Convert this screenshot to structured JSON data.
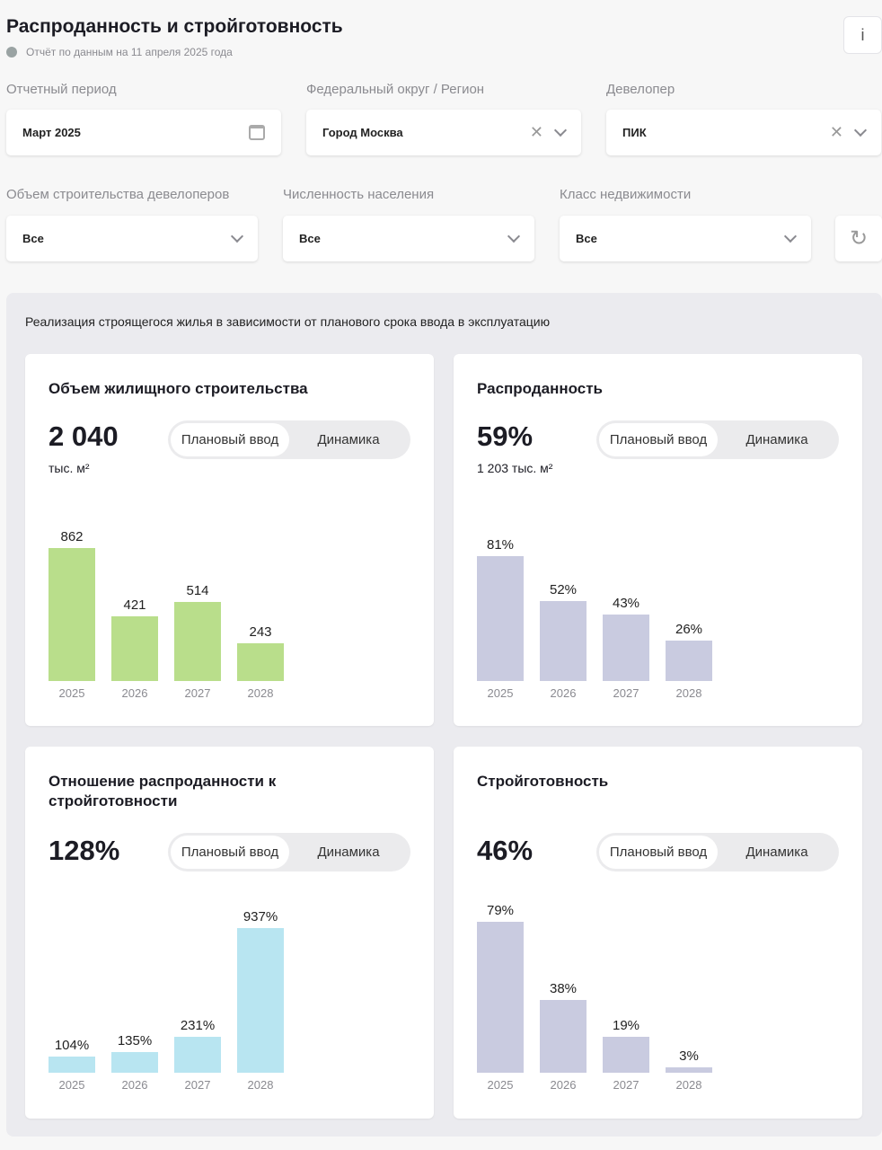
{
  "header": {
    "title": "Распроданность и стройготовность",
    "report_date": "Отчёт по данным на 11 апреля 2025 года",
    "info_label": "i"
  },
  "filters": {
    "period": {
      "label": "Отчетный период",
      "value": "Март 2025"
    },
    "region": {
      "label": "Федеральный округ / Регион",
      "value": "Город Москва"
    },
    "developer": {
      "label": "Девелопер",
      "value": "ПИК"
    },
    "volume": {
      "label": "Объем строительства девелоперов",
      "value": "Все"
    },
    "population": {
      "label": "Численность населения",
      "value": "Все"
    },
    "class": {
      "label": "Класс недвижимости",
      "value": "Все"
    }
  },
  "panel": {
    "title": "Реализация строящегося жилья в зависимости от планового срока ввода в эксплуатацию"
  },
  "toggle": {
    "planned": "Плановый ввод",
    "dynamics": "Динамика"
  },
  "chart_data": [
    {
      "type": "bar",
      "title": "Объем жилищного строительства",
      "total": "2 040",
      "unit": "тыс. м²",
      "categories": [
        "2025",
        "2026",
        "2027",
        "2028"
      ],
      "values": [
        862,
        421,
        514,
        243
      ],
      "labels": [
        "862",
        "421",
        "514",
        "243"
      ],
      "color": "#b9de8b"
    },
    {
      "type": "bar",
      "title": "Распроданность",
      "total": "59%",
      "unit": "1 203 тыс. м²",
      "categories": [
        "2025",
        "2026",
        "2027",
        "2028"
      ],
      "values": [
        81,
        52,
        43,
        26
      ],
      "labels": [
        "81%",
        "52%",
        "43%",
        "26%"
      ],
      "color": "#c9cbe0"
    },
    {
      "type": "bar",
      "title": "Отношение распроданности к стройготовности",
      "total": "128%",
      "categories": [
        "2025",
        "2026",
        "2027",
        "2028"
      ],
      "values": [
        104,
        135,
        231,
        937
      ],
      "labels": [
        "104%",
        "135%",
        "231%",
        "937%"
      ],
      "color": "#b8e5f1"
    },
    {
      "type": "bar",
      "title": "Стройготовность",
      "total": "46%",
      "categories": [
        "2025",
        "2026",
        "2027",
        "2028"
      ],
      "values": [
        79,
        38,
        19,
        3
      ],
      "labels": [
        "79%",
        "38%",
        "19%",
        "3%"
      ],
      "color": "#c9cbe0"
    }
  ]
}
